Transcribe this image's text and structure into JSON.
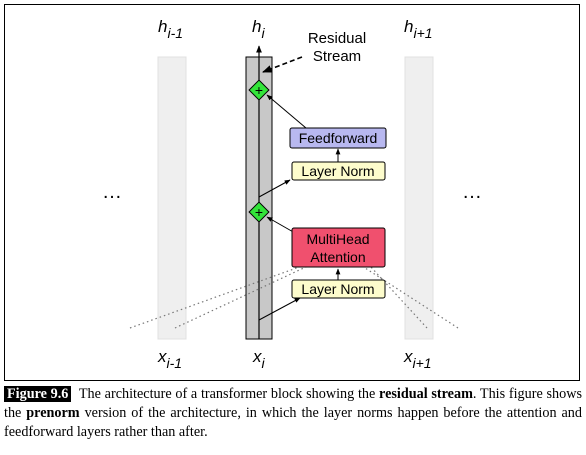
{
  "diagram": {
    "top_labels": {
      "left": {
        "base": "h",
        "sub": "i-1"
      },
      "center": {
        "base": "h",
        "sub": "i"
      },
      "right": {
        "base": "h",
        "sub": "i+1"
      }
    },
    "bottom_labels": {
      "left": {
        "base": "x",
        "sub": "i-1"
      },
      "center": {
        "base": "x",
        "sub": "i"
      },
      "right": {
        "base": "x",
        "sub": "i+1"
      }
    },
    "residual_stream_label": [
      "Residual",
      "Stream"
    ],
    "ellipsis_left": "…",
    "ellipsis_right": "…",
    "boxes": {
      "feedforward": {
        "label": "Feedforward",
        "fill": "#b8b8f0"
      },
      "layer_norm_top": {
        "label": "Layer Norm",
        "fill": "#fdfccc"
      },
      "multihead": {
        "line1": "MultiHead",
        "line2": "Attention",
        "fill": "#f0506e"
      },
      "layer_norm_bottom": {
        "label": "Layer Norm",
        "fill": "#fdfccc"
      }
    },
    "add_node": {
      "symbol": "+",
      "fill": "#33e43a"
    },
    "stream_color": "#c8c8c8"
  },
  "caption": {
    "figure_label": "Figure 9.6",
    "text_1": "The architecture of a transformer block showing the ",
    "bold_1": "residual stream",
    "text_2": ". This figure shows the ",
    "bold_2": "prenorm",
    "text_3": " version of the architecture, in which the layer norms happen before the attention and feedforward layers rather than after."
  }
}
